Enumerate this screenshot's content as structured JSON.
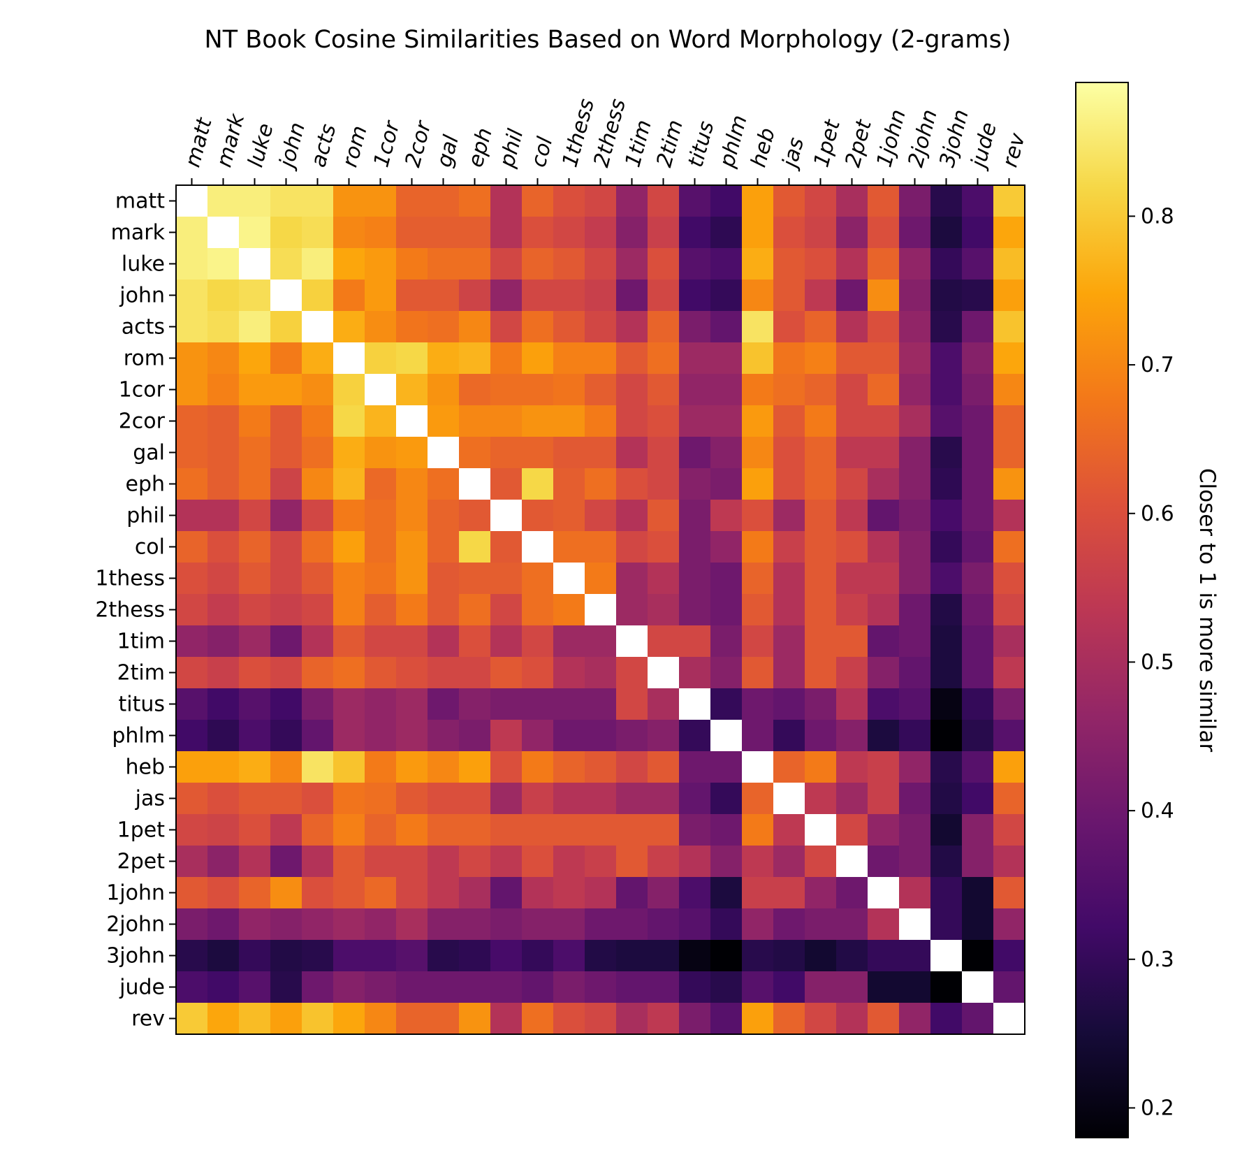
{
  "chart_data": {
    "type": "heatmap",
    "title": "NT Book Cosine Similarities Based on Word Morphology (2-grams)",
    "row_labels": [
      "matt",
      "mark",
      "luke",
      "john",
      "acts",
      "rom",
      "1cor",
      "2cor",
      "gal",
      "eph",
      "phil",
      "col",
      "1thess",
      "2thess",
      "1tim",
      "2tim",
      "titus",
      "phlm",
      "heb",
      "jas",
      "1pet",
      "2pet",
      "1john",
      "2john",
      "3john",
      "jude",
      "rev"
    ],
    "col_labels": [
      "matt",
      "mark",
      "luke",
      "john",
      "acts",
      "rom",
      "1cor",
      "2cor",
      "gal",
      "eph",
      "phil",
      "col",
      "1thess",
      "2thess",
      "1tim",
      "2tim",
      "titus",
      "phlm",
      "heb",
      "jas",
      "1pet",
      "2pet",
      "1john",
      "2john",
      "3john",
      "jude",
      "rev"
    ],
    "values": [
      [
        1.0,
        0.86,
        0.86,
        0.84,
        0.84,
        0.72,
        0.72,
        0.64,
        0.64,
        0.66,
        0.52,
        0.64,
        0.6,
        0.58,
        0.46,
        0.58,
        0.36,
        0.32,
        0.74,
        0.62,
        0.58,
        0.5,
        0.62,
        0.42,
        0.28,
        0.34,
        0.8
      ],
      [
        0.86,
        1.0,
        0.87,
        0.82,
        0.83,
        0.7,
        0.69,
        0.63,
        0.63,
        0.63,
        0.52,
        0.6,
        0.58,
        0.55,
        0.44,
        0.56,
        0.32,
        0.29,
        0.74,
        0.6,
        0.57,
        0.45,
        0.6,
        0.4,
        0.26,
        0.32,
        0.75
      ],
      [
        0.86,
        0.87,
        1.0,
        0.83,
        0.86,
        0.75,
        0.73,
        0.68,
        0.66,
        0.66,
        0.58,
        0.64,
        0.62,
        0.58,
        0.48,
        0.6,
        0.36,
        0.34,
        0.76,
        0.62,
        0.6,
        0.52,
        0.64,
        0.46,
        0.3,
        0.36,
        0.78
      ],
      [
        0.84,
        0.82,
        0.83,
        1.0,
        0.81,
        0.68,
        0.73,
        0.62,
        0.62,
        0.57,
        0.46,
        0.58,
        0.58,
        0.56,
        0.4,
        0.58,
        0.32,
        0.3,
        0.7,
        0.62,
        0.54,
        0.4,
        0.71,
        0.44,
        0.27,
        0.28,
        0.74
      ],
      [
        0.84,
        0.83,
        0.86,
        0.81,
        1.0,
        0.76,
        0.71,
        0.67,
        0.66,
        0.7,
        0.58,
        0.66,
        0.62,
        0.58,
        0.52,
        0.64,
        0.42,
        0.38,
        0.84,
        0.6,
        0.64,
        0.52,
        0.6,
        0.46,
        0.28,
        0.4,
        0.79
      ],
      [
        0.72,
        0.7,
        0.75,
        0.68,
        0.76,
        1.0,
        0.81,
        0.82,
        0.76,
        0.77,
        0.68,
        0.74,
        0.69,
        0.69,
        0.62,
        0.66,
        0.48,
        0.48,
        0.79,
        0.67,
        0.69,
        0.62,
        0.62,
        0.48,
        0.34,
        0.44,
        0.75
      ],
      [
        0.72,
        0.69,
        0.73,
        0.73,
        0.71,
        0.81,
        1.0,
        0.77,
        0.72,
        0.65,
        0.66,
        0.66,
        0.67,
        0.63,
        0.58,
        0.62,
        0.46,
        0.46,
        0.68,
        0.66,
        0.64,
        0.58,
        0.65,
        0.46,
        0.34,
        0.42,
        0.7
      ],
      [
        0.64,
        0.63,
        0.68,
        0.62,
        0.68,
        0.82,
        0.77,
        1.0,
        0.73,
        0.7,
        0.7,
        0.72,
        0.72,
        0.68,
        0.58,
        0.6,
        0.48,
        0.48,
        0.73,
        0.62,
        0.68,
        0.58,
        0.58,
        0.5,
        0.36,
        0.4,
        0.64
      ],
      [
        0.64,
        0.63,
        0.66,
        0.62,
        0.66,
        0.76,
        0.72,
        0.73,
        1.0,
        0.66,
        0.64,
        0.64,
        0.62,
        0.62,
        0.52,
        0.58,
        0.4,
        0.44,
        0.7,
        0.6,
        0.64,
        0.54,
        0.54,
        0.44,
        0.28,
        0.4,
        0.64
      ],
      [
        0.66,
        0.63,
        0.66,
        0.57,
        0.7,
        0.77,
        0.65,
        0.7,
        0.66,
        1.0,
        0.62,
        0.82,
        0.63,
        0.66,
        0.6,
        0.58,
        0.44,
        0.42,
        0.74,
        0.6,
        0.64,
        0.58,
        0.5,
        0.44,
        0.29,
        0.4,
        0.72
      ],
      [
        0.52,
        0.52,
        0.58,
        0.46,
        0.58,
        0.68,
        0.66,
        0.7,
        0.64,
        0.62,
        1.0,
        0.62,
        0.63,
        0.58,
        0.52,
        0.62,
        0.42,
        0.54,
        0.6,
        0.48,
        0.62,
        0.54,
        0.38,
        0.42,
        0.33,
        0.4,
        0.52
      ],
      [
        0.64,
        0.6,
        0.64,
        0.58,
        0.66,
        0.74,
        0.66,
        0.72,
        0.64,
        0.82,
        0.62,
        1.0,
        0.66,
        0.66,
        0.58,
        0.6,
        0.42,
        0.46,
        0.68,
        0.56,
        0.62,
        0.6,
        0.52,
        0.44,
        0.3,
        0.38,
        0.66
      ],
      [
        0.6,
        0.58,
        0.62,
        0.58,
        0.62,
        0.69,
        0.67,
        0.72,
        0.62,
        0.63,
        0.63,
        0.66,
        1.0,
        0.68,
        0.48,
        0.52,
        0.42,
        0.4,
        0.64,
        0.52,
        0.62,
        0.54,
        0.54,
        0.44,
        0.34,
        0.42,
        0.6
      ],
      [
        0.58,
        0.55,
        0.58,
        0.56,
        0.58,
        0.69,
        0.63,
        0.68,
        0.62,
        0.66,
        0.58,
        0.66,
        0.68,
        1.0,
        0.48,
        0.5,
        0.42,
        0.4,
        0.62,
        0.52,
        0.62,
        0.56,
        0.52,
        0.4,
        0.27,
        0.4,
        0.58
      ],
      [
        0.46,
        0.44,
        0.48,
        0.4,
        0.52,
        0.62,
        0.58,
        0.58,
        0.52,
        0.6,
        0.52,
        0.58,
        0.48,
        0.48,
        1.0,
        0.58,
        0.58,
        0.42,
        0.58,
        0.48,
        0.62,
        0.62,
        0.38,
        0.4,
        0.26,
        0.38,
        0.5
      ],
      [
        0.58,
        0.56,
        0.6,
        0.58,
        0.64,
        0.66,
        0.62,
        0.6,
        0.58,
        0.58,
        0.62,
        0.6,
        0.52,
        0.5,
        0.58,
        1.0,
        0.5,
        0.44,
        0.62,
        0.48,
        0.62,
        0.56,
        0.44,
        0.38,
        0.26,
        0.38,
        0.54
      ],
      [
        0.36,
        0.32,
        0.36,
        0.32,
        0.42,
        0.48,
        0.46,
        0.48,
        0.4,
        0.44,
        0.42,
        0.42,
        0.42,
        0.42,
        0.58,
        0.5,
        1.0,
        0.3,
        0.4,
        0.38,
        0.42,
        0.52,
        0.34,
        0.36,
        0.2,
        0.3,
        0.42
      ],
      [
        0.32,
        0.29,
        0.34,
        0.3,
        0.38,
        0.48,
        0.46,
        0.48,
        0.44,
        0.42,
        0.54,
        0.46,
        0.4,
        0.4,
        0.42,
        0.44,
        0.3,
        1.0,
        0.4,
        0.3,
        0.4,
        0.44,
        0.26,
        0.3,
        0.18,
        0.28,
        0.36
      ],
      [
        0.74,
        0.74,
        0.76,
        0.7,
        0.84,
        0.79,
        0.68,
        0.73,
        0.7,
        0.74,
        0.6,
        0.68,
        0.64,
        0.62,
        0.58,
        0.62,
        0.4,
        0.4,
        1.0,
        0.64,
        0.68,
        0.54,
        0.56,
        0.46,
        0.28,
        0.36,
        0.74
      ],
      [
        0.62,
        0.6,
        0.62,
        0.62,
        0.6,
        0.67,
        0.66,
        0.62,
        0.6,
        0.6,
        0.48,
        0.56,
        0.52,
        0.52,
        0.48,
        0.48,
        0.38,
        0.3,
        0.64,
        1.0,
        0.54,
        0.48,
        0.56,
        0.4,
        0.27,
        0.32,
        0.64
      ],
      [
        0.58,
        0.57,
        0.6,
        0.54,
        0.64,
        0.69,
        0.64,
        0.68,
        0.64,
        0.64,
        0.62,
        0.62,
        0.62,
        0.62,
        0.62,
        0.62,
        0.42,
        0.4,
        0.68,
        0.54,
        1.0,
        0.58,
        0.46,
        0.42,
        0.24,
        0.44,
        0.58
      ],
      [
        0.5,
        0.45,
        0.52,
        0.4,
        0.52,
        0.62,
        0.58,
        0.58,
        0.54,
        0.58,
        0.54,
        0.6,
        0.54,
        0.56,
        0.62,
        0.56,
        0.52,
        0.44,
        0.54,
        0.48,
        0.58,
        1.0,
        0.4,
        0.42,
        0.27,
        0.44,
        0.52
      ],
      [
        0.62,
        0.6,
        0.64,
        0.71,
        0.6,
        0.62,
        0.65,
        0.58,
        0.54,
        0.5,
        0.38,
        0.52,
        0.54,
        0.52,
        0.38,
        0.44,
        0.34,
        0.26,
        0.56,
        0.56,
        0.46,
        0.4,
        1.0,
        0.52,
        0.3,
        0.24,
        0.62
      ],
      [
        0.42,
        0.4,
        0.46,
        0.44,
        0.46,
        0.48,
        0.46,
        0.5,
        0.44,
        0.44,
        0.42,
        0.44,
        0.44,
        0.4,
        0.4,
        0.38,
        0.36,
        0.3,
        0.46,
        0.4,
        0.42,
        0.42,
        0.52,
        1.0,
        0.3,
        0.24,
        0.46
      ],
      [
        0.28,
        0.26,
        0.3,
        0.27,
        0.28,
        0.34,
        0.34,
        0.36,
        0.28,
        0.29,
        0.33,
        0.3,
        0.34,
        0.27,
        0.26,
        0.26,
        0.2,
        0.18,
        0.28,
        0.27,
        0.24,
        0.27,
        0.3,
        0.3,
        1.0,
        0.16,
        0.32
      ],
      [
        0.34,
        0.32,
        0.36,
        0.28,
        0.4,
        0.44,
        0.42,
        0.4,
        0.4,
        0.4,
        0.4,
        0.38,
        0.42,
        0.4,
        0.38,
        0.38,
        0.3,
        0.28,
        0.36,
        0.32,
        0.44,
        0.44,
        0.24,
        0.24,
        0.16,
        1.0,
        0.38
      ],
      [
        0.8,
        0.75,
        0.78,
        0.74,
        0.79,
        0.75,
        0.7,
        0.64,
        0.64,
        0.72,
        0.52,
        0.66,
        0.6,
        0.58,
        0.5,
        0.54,
        0.42,
        0.36,
        0.74,
        0.64,
        0.58,
        0.52,
        0.62,
        0.46,
        0.32,
        0.38,
        1.0
      ]
    ],
    "colormap": "inferno",
    "vmin": 0.18,
    "vmax": 0.89,
    "diagonal_color": "#ffffff",
    "colorbar": {
      "label": "Closer to 1 is more similar",
      "ticks": [
        "0.2",
        "0.3",
        "0.4",
        "0.5",
        "0.6",
        "0.7",
        "0.8"
      ],
      "tick_values": [
        0.2,
        0.3,
        0.4,
        0.5,
        0.6,
        0.7,
        0.8
      ]
    }
  }
}
